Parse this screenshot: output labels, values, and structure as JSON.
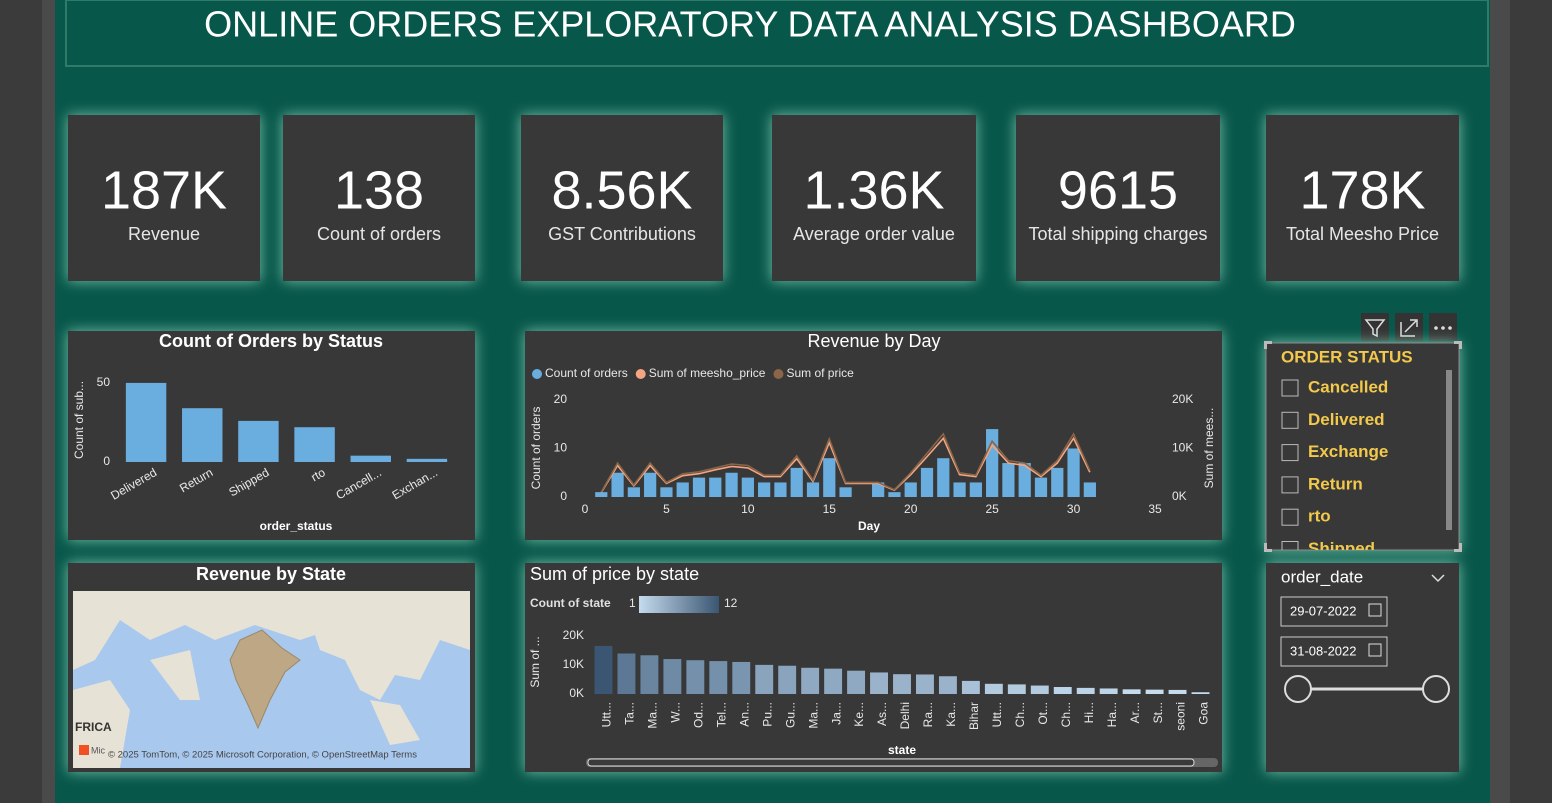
{
  "title": "ONLINE ORDERS EXPLORATORY DATA ANALYSIS DASHBOARD",
  "kpis": [
    {
      "value": "187K",
      "label": "Revenue"
    },
    {
      "value": "138",
      "label": "Count of orders"
    },
    {
      "value": "8.56K",
      "label": "GST Contributions"
    },
    {
      "value": "1.36K",
      "label": "Average order value"
    },
    {
      "value": "9615",
      "label": "Total shipping charges"
    },
    {
      "value": "178K",
      "label": "Total Meesho Price"
    }
  ],
  "chart_data": [
    {
      "type": "bar",
      "title": "Count of Orders by Status",
      "categories": [
        "Delivered",
        "Return",
        "Shipped",
        "rto",
        "Cancell...",
        "Exchan..."
      ],
      "values": [
        50,
        34,
        26,
        22,
        4,
        2
      ],
      "color": "#6aaee0",
      "ylim": [
        0,
        55
      ],
      "yticks": [
        0,
        50
      ],
      "x_label": "order_status",
      "y_label": "Count of sub..."
    },
    {
      "type": "combo",
      "title": "Revenue by Day",
      "x": [
        1,
        2,
        3,
        4,
        5,
        6,
        7,
        8,
        9,
        10,
        11,
        12,
        13,
        14,
        15,
        16,
        18,
        19,
        20,
        21,
        22,
        23,
        24,
        25,
        26,
        27,
        28,
        29,
        30,
        31
      ],
      "series": [
        {
          "name": "Count of orders",
          "type": "bar",
          "color": "#6aaee0",
          "values": [
            1,
            5,
            2,
            5,
            2,
            3,
            4,
            4,
            5,
            4,
            3,
            3,
            6,
            3,
            8,
            2,
            3,
            1,
            3,
            6,
            8,
            3,
            3,
            14,
            7,
            7,
            4,
            6,
            10,
            3
          ]
        },
        {
          "name": "Sum of meesho_price",
          "type": "line",
          "axis": "y2",
          "color": "#f4a582",
          "values": [
            900,
            6500,
            2300,
            6500,
            2800,
            4400,
            4800,
            5600,
            6300,
            6000,
            4200,
            4200,
            7900,
            3200,
            11200,
            2800,
            2800,
            1400,
            4600,
            8300,
            12100,
            4600,
            4200,
            10700,
            7000,
            6500,
            4200,
            7000,
            12100,
            5100
          ]
        },
        {
          "name": "Sum of price",
          "type": "line",
          "axis": "y2",
          "color": "#8a6548",
          "values": [
            1000,
            7000,
            2500,
            7000,
            3000,
            4800,
            5200,
            6000,
            6800,
            6500,
            4500,
            4500,
            8500,
            3500,
            12000,
            3000,
            3000,
            1500,
            5000,
            9000,
            13000,
            5000,
            4500,
            11500,
            7500,
            7000,
            4500,
            7500,
            13000,
            5500
          ]
        }
      ],
      "xlim": [
        0,
        35
      ],
      "xticks": [
        0,
        5,
        10,
        15,
        20,
        25,
        30,
        35
      ],
      "ylim": [
        0,
        20
      ],
      "yticks": [
        0,
        10,
        20
      ],
      "y2lim": [
        0,
        20000
      ],
      "y2ticks": [
        {
          "value": 0,
          "label": "0K"
        },
        {
          "value": 10000,
          "label": "10K"
        },
        {
          "value": 20000,
          "label": "20K"
        }
      ],
      "x_label": "Day",
      "y_label": "Count of orders",
      "y2_label": "Sum of mees..."
    },
    {
      "type": "bar",
      "title": "Sum of price by state",
      "categories": [
        "Utt...",
        "Ta...",
        "Ma...",
        "W...",
        "Od...",
        "Tel...",
        "An...",
        "Pu...",
        "Gu...",
        "Ma...",
        "Ja...",
        "Ke...",
        "As...",
        "Delhi",
        "Ra...",
        "Ka...",
        "Bihar",
        "Utt...",
        "Ch...",
        "Ot...",
        "Ch...",
        "Hi...",
        "Ha...",
        "Ar...",
        "St...",
        "seoni",
        "Goa"
      ],
      "values": [
        16500,
        13900,
        13300,
        12000,
        11600,
        11300,
        11000,
        10000,
        9700,
        9000,
        8700,
        8000,
        7400,
        6800,
        6700,
        6100,
        4500,
        3500,
        3300,
        2900,
        2400,
        2100,
        1900,
        1600,
        1500,
        1400,
        600
      ],
      "colors": [
        "#3b5672",
        "#5d7894",
        "#6a85a0",
        "#6f8aa5",
        "#7590ab",
        "#7590ab",
        "#7a95b0",
        "#8aa4bd",
        "#8aa4bd",
        "#8fa9c2",
        "#8fa9c2",
        "#8fa9c2",
        "#9ab3cb",
        "#9ab3cb",
        "#9ab3cb",
        "#9ab3cb",
        "#a9c1d8",
        "#b3cadf",
        "#b3cadf",
        "#b3cadf",
        "#bdd3e8",
        "#bdd3e8",
        "#bdd3e8",
        "#c5dbee",
        "#c5dbee",
        "#c5dbee",
        "#c5dbee"
      ],
      "color_legend": {
        "title": "Count of state",
        "min": 1,
        "max": 12,
        "colors": [
          "#c5dbee",
          "#3b5672"
        ]
      },
      "ylim": [
        0,
        23000
      ],
      "yticks": [
        {
          "value": 0,
          "label": "0K"
        },
        {
          "value": 10000,
          "label": "10K"
        },
        {
          "value": 20000,
          "label": "20K"
        }
      ],
      "x_label": "state",
      "y_label": "Sum of ..."
    }
  ],
  "map": {
    "title": "Revenue by State",
    "place_label": "FRICA",
    "attribution": "© 2025 TomTom, © 2025 Microsoft Corporation, © OpenStreetMap  Terms",
    "logo_text": "Mic"
  },
  "status_slicer": {
    "title": "ORDER STATUS",
    "items": [
      "Cancelled",
      "Delivered",
      "Exchange",
      "Return",
      "rto",
      "Shipped"
    ]
  },
  "date_slicer": {
    "title": "order_date",
    "start": "29-07-2022",
    "end": "31-08-2022"
  }
}
